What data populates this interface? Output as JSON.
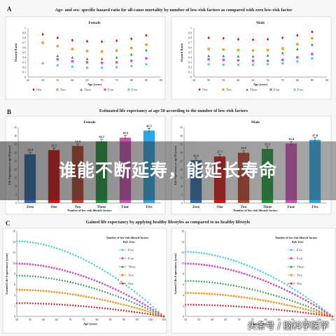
{
  "chart_data": [
    {
      "panel_letter": "A",
      "title": "Age- and sex- specific hazard ratio for all-cause mortality by number of low-risk factors as compared with zero low-risk factor",
      "type": "scatter",
      "x": [
        50,
        55,
        60,
        65,
        70,
        75,
        80,
        85
      ],
      "xlim": [
        45,
        90
      ],
      "ylim": [
        0,
        1
      ],
      "yticks": [
        "0",
        "0.1",
        "0.2",
        "0.3",
        "0.4",
        "0.5",
        "0.6",
        "0.7",
        "0.8",
        "0.9",
        "1"
      ],
      "xlabel": "Age (year)",
      "ylabel": "Hazard Ratio",
      "legend": [
        "One",
        "Two",
        "Three",
        "Four",
        "Five"
      ],
      "panels": [
        {
          "name": "Female",
          "series": [
            {
              "name": "One",
              "values": [
                0.87,
                0.8,
                0.75,
                0.73,
                0.72,
                0.74,
                0.78,
                0.85
              ]
            },
            {
              "name": "Two",
              "values": [
                0.7,
                0.63,
                0.57,
                0.53,
                0.52,
                0.54,
                0.59,
                0.66
              ]
            },
            {
              "name": "Three",
              "values": [
                null,
                0.43,
                0.4,
                0.37,
                0.37,
                0.4,
                0.46,
                0.55
              ]
            },
            {
              "name": "Four",
              "values": [
                null,
                0.36,
                0.32,
                0.3,
                0.29,
                0.3,
                0.33,
                0.38
              ]
            },
            {
              "name": "Five",
              "values": [
                0.28,
                0.24,
                0.21,
                0.19,
                0.19,
                0.2,
                0.22,
                0.26
              ]
            }
          ]
        },
        {
          "name": "Male",
          "series": [
            {
              "name": "One",
              "values": [
                0.8,
                0.79,
                0.77,
                0.76,
                0.77,
                0.8,
                0.85,
                0.92
              ]
            },
            {
              "name": "Two",
              "values": [
                0.57,
                0.56,
                0.55,
                0.54,
                0.55,
                0.58,
                0.67,
                0.79
              ]
            },
            {
              "name": "Three",
              "values": [
                0.43,
                0.43,
                0.42,
                0.42,
                0.44,
                0.49,
                0.57,
                0.66
              ]
            },
            {
              "name": "Four",
              "values": [
                0.36,
                0.35,
                0.34,
                0.33,
                0.33,
                0.35,
                0.4,
                0.47
              ]
            },
            {
              "name": "Five",
              "values": [
                0.26,
                0.25,
                0.25,
                0.25,
                0.26,
                0.28,
                0.32,
                0.38
              ]
            }
          ]
        }
      ]
    },
    {
      "panel_letter": "B",
      "title": "Estimated life expectancy at age 50 according to the number of low-risk factors",
      "type": "bar",
      "categories": [
        "Zero",
        "One",
        "Two",
        "Three",
        "Four",
        "Five"
      ],
      "xlabel": "Number of low-risk lifestyle factors",
      "ylabel": "Life Expectancy at age 50 (years)",
      "ylim": [
        0,
        45
      ],
      "colors": [
        "#2e6db4",
        "#e01010",
        "#c0432a",
        "#1a9a3a",
        "#d24fb8",
        "#2aa8e6"
      ],
      "panels": [
        {
          "name": "Female",
          "values": [
            29.0,
            31.5,
            34.0,
            36.7,
            38.9,
            43.1
          ],
          "labels": [
            "29.0",
            "31.5",
            "34.0",
            "36.7",
            "38.9",
            "43.1"
          ]
        },
        {
          "name": "Male",
          "values": [
            25.5,
            27.7,
            29.9,
            32.2,
            35.4,
            37.6
          ],
          "labels": [
            "25.5",
            "27.7",
            "29.9",
            "32.2",
            "35.4",
            "37.6"
          ]
        }
      ]
    },
    {
      "panel_letter": "C",
      "title": "Gained life expectancy by applying healthy lifestyles as compared to no healthy lifestyle",
      "type": "line",
      "xlim": [
        50,
        105
      ],
      "xticks": [
        50,
        55,
        60,
        65,
        70,
        75,
        80,
        85,
        90,
        95,
        100,
        105
      ],
      "xlabel": "Age (year)",
      "ylabel": "Gained Life Expectancy (year)",
      "ylim": [
        0,
        16
      ],
      "yticks": [
        0,
        2,
        4,
        6,
        8,
        10,
        12,
        14,
        16
      ],
      "legend_title": "Number of low-risk lifestyle factors",
      "legend_ref": "Ref: Zero",
      "legend": [
        "Five",
        "Four",
        "Three",
        "Two",
        "One"
      ],
      "panels": [
        {
          "name": "Female",
          "start": {
            "Five": 14.1,
            "Four": 9.9,
            "Three": 7.7,
            "Two": 5.0,
            "One": 2.5
          }
        },
        {
          "name": "Male",
          "start": {
            "Five": 12.1,
            "Four": 9.9,
            "Three": 6.7,
            "Two": 4.4,
            "One": 2.2
          }
        }
      ]
    }
  ],
  "banner": {
    "text": "谁能不断延寿，能延长寿命"
  },
  "watermark": {
    "text": "头条号 / 脑科学医学"
  },
  "series_style": {
    "One": {
      "color": "#e4151f",
      "marker": "diamond"
    },
    "Two": {
      "color": "#f39a1b",
      "marker": "square"
    },
    "Three": {
      "color": "#1f9e3b",
      "marker": "triangle"
    },
    "Four": {
      "color": "#d84fcf",
      "marker": "square"
    },
    "Five": {
      "color": "#3fd3e6",
      "marker": "circle"
    }
  }
}
